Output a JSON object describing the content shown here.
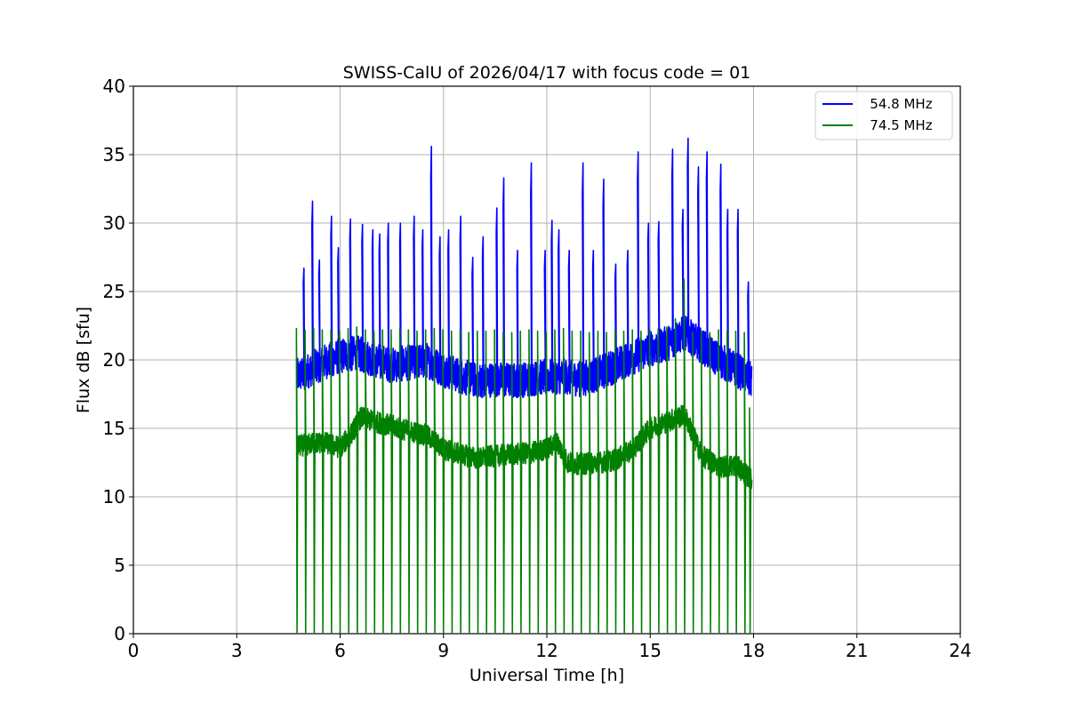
{
  "chart_data": {
    "type": "line",
    "title": "SWISS-CalU of 2026/04/17 with focus code = 01",
    "xlabel": "Universal Time [h]",
    "ylabel": "Flux dB [sfu]",
    "xlim": [
      0,
      24
    ],
    "ylim": [
      0,
      40
    ],
    "xticks": [
      0,
      3,
      6,
      9,
      12,
      15,
      18,
      21,
      24
    ],
    "yticks": [
      0,
      5,
      10,
      15,
      20,
      25,
      30,
      35,
      40
    ],
    "grid": true,
    "legend_position": "top-right",
    "data_range_x": [
      4.75,
      17.95
    ],
    "series": [
      {
        "name": "   54.8 MHz",
        "color": "#0000ff",
        "baseline_x": [
          4.75,
          5.5,
          6.0,
          6.5,
          7.0,
          7.5,
          8.0,
          8.5,
          9.0,
          9.5,
          10.0,
          10.5,
          11.0,
          11.5,
          12.0,
          12.5,
          13.0,
          13.5,
          14.0,
          14.5,
          15.0,
          15.5,
          16.0,
          16.5,
          17.0,
          17.5,
          17.95
        ],
        "baseline_y": [
          18.8,
          19.8,
          20.3,
          20.5,
          20.0,
          19.6,
          19.8,
          20.0,
          19.3,
          18.8,
          18.5,
          18.6,
          18.5,
          18.6,
          18.8,
          18.8,
          18.6,
          19.0,
          19.6,
          20.2,
          20.8,
          21.2,
          22.0,
          21.0,
          20.0,
          19.3,
          18.5
        ],
        "spike_x": [
          4.95,
          5.2,
          5.4,
          5.75,
          5.95,
          6.3,
          6.65,
          6.95,
          7.15,
          7.4,
          7.75,
          8.15,
          8.4,
          8.65,
          8.9,
          9.15,
          9.5,
          9.85,
          10.15,
          10.55,
          10.75,
          11.15,
          11.55,
          11.95,
          12.15,
          12.35,
          12.65,
          13.05,
          13.35,
          13.65,
          14.0,
          14.35,
          14.65,
          14.95,
          15.25,
          15.65,
          15.95,
          16.1,
          16.4,
          16.65,
          17.05,
          17.25,
          17.55,
          17.85
        ],
        "spike_y": [
          26.7,
          31.6,
          27.3,
          30.5,
          28.2,
          30.3,
          29.9,
          29.5,
          29.2,
          30.0,
          30.0,
          30.5,
          29.5,
          35.6,
          29.0,
          29.5,
          30.5,
          27.5,
          29.0,
          31.1,
          33.3,
          28.0,
          34.4,
          28.0,
          30.2,
          29.5,
          28.0,
          34.4,
          28.0,
          33.2,
          27.0,
          28.0,
          35.2,
          30.0,
          30.1,
          35.4,
          31.0,
          36.2,
          34.1,
          35.2,
          34.3,
          31.0,
          31.0,
          25.7
        ]
      },
      {
        "name": "   74.5 MHz",
        "color": "#008000",
        "baseline_x": [
          4.75,
          5.5,
          6.0,
          6.3,
          6.6,
          7.0,
          7.5,
          8.0,
          8.5,
          9.0,
          9.5,
          10.0,
          10.5,
          11.0,
          11.5,
          12.0,
          12.3,
          12.6,
          13.0,
          13.5,
          14.0,
          14.5,
          15.0,
          15.5,
          16.0,
          16.5,
          17.0,
          17.5,
          17.95
        ],
        "baseline_y": [
          13.7,
          14.0,
          13.6,
          14.5,
          15.8,
          15.5,
          15.2,
          14.8,
          14.5,
          13.5,
          13.1,
          12.8,
          13.0,
          13.1,
          13.2,
          13.5,
          14.0,
          12.5,
          12.4,
          12.5,
          12.7,
          13.5,
          15.0,
          15.5,
          16.0,
          13.0,
          12.2,
          12.3,
          11.2
        ],
        "spike_x": [
          4.75,
          5.0,
          5.25,
          5.5,
          5.75,
          6.0,
          6.25,
          6.5,
          6.75,
          7.0,
          7.25,
          7.5,
          7.75,
          8.0,
          8.25,
          8.5,
          8.75,
          9.0,
          9.25,
          9.5,
          9.75,
          10.0,
          10.25,
          10.5,
          10.75,
          11.0,
          11.25,
          11.5,
          11.75,
          12.0,
          12.25,
          12.5,
          12.75,
          13.0,
          13.25,
          13.5,
          13.75,
          14.0,
          14.25,
          14.5,
          14.75,
          15.0,
          15.25,
          15.5,
          15.75,
          16.0,
          16.25,
          16.5,
          16.75,
          17.0,
          17.25,
          17.5,
          17.75,
          17.9
        ],
        "spike_y": [
          22.3,
          22.2,
          22.3,
          22.2,
          22.2,
          22.1,
          22.3,
          22.4,
          22.2,
          22.1,
          22.2,
          22.2,
          22.3,
          22.2,
          22.1,
          22.2,
          22.3,
          22.2,
          22.1,
          22.2,
          22.0,
          22.1,
          22.1,
          22.2,
          22.0,
          22.0,
          22.1,
          22.2,
          22.1,
          22.0,
          22.2,
          22.3,
          22.1,
          22.1,
          22.0,
          22.1,
          22.0,
          22.2,
          22.1,
          22.2,
          22.1,
          22.2,
          22.2,
          22.4,
          23.0,
          25.9,
          22.0,
          22.1,
          22.0,
          22.2,
          22.1,
          22.1,
          22.0,
          16.5
        ],
        "dropouts_to_zero": true
      }
    ]
  }
}
